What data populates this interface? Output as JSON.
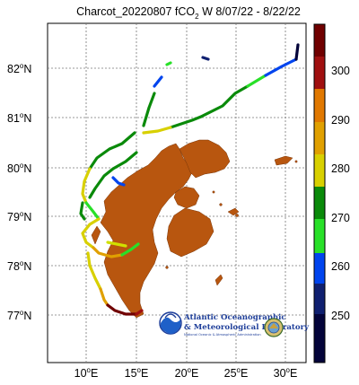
{
  "map": {
    "title_main": "Charcot_20220807 fCO",
    "title_sub": "2",
    "title_tail": "W 8/07/22 - 8/22/22",
    "lat_labels": [
      "82",
      "81",
      "80",
      "79",
      "78",
      "77"
    ],
    "lon_labels": [
      "10",
      "15",
      "20",
      "25",
      "30"
    ],
    "lat_suffix": "N",
    "lon_suffix": "E",
    "degree_symbol": "o"
  },
  "colorbar": {
    "labels": [
      "300",
      "290",
      "280",
      "270",
      "260",
      "250"
    ],
    "colors": [
      "#700000",
      "#a01010",
      "#e0a000",
      "#d8d000",
      "#d0e000",
      "#0a8a0a",
      "#28e028",
      "#00b0c8",
      "#0044ee",
      "#102070",
      "#04043a"
    ]
  },
  "logo": {
    "line1": "Atlantic Oceanographic",
    "line2": "& Meteorological Laboratory",
    "line3": "National Oceanic & Atmospheric Administration",
    "noaa": "NOAA"
  },
  "colors": {
    "land": "#b8560f",
    "land_edge": "#7a3507",
    "grid": "#7a7a7a"
  }
}
